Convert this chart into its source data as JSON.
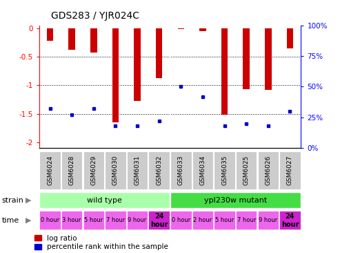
{
  "title": "GDS283 / YJR024C",
  "samples": [
    "GSM6024",
    "GSM6028",
    "GSM6029",
    "GSM6030",
    "GSM6031",
    "GSM6032",
    "GSM6033",
    "GSM6034",
    "GSM6035",
    "GSM6025",
    "GSM6026",
    "GSM6027"
  ],
  "log_ratios": [
    -0.22,
    -0.38,
    -0.43,
    -1.65,
    -1.27,
    -0.88,
    -0.02,
    -0.05,
    -1.52,
    -1.07,
    -1.08,
    -0.35
  ],
  "percentile_ranks": [
    32,
    27,
    32,
    18,
    18,
    22,
    50,
    42,
    18,
    20,
    18,
    30
  ],
  "ylim_left": [
    -2.1,
    0.05
  ],
  "ylim_right": [
    -2.1,
    0.05
  ],
  "left_yticks": [
    0,
    -0.5,
    -1.0,
    -1.5,
    -2.0
  ],
  "right_yticks_pct": [
    0,
    25,
    50,
    75,
    100
  ],
  "left_ytick_labels": [
    "0",
    "-0.5",
    "-1",
    "-1.5",
    "-2"
  ],
  "right_ytick_labels": [
    "0%",
    "25%",
    "50%",
    "75%",
    "100%"
  ],
  "bar_color": "#cc0000",
  "percentile_color": "#0000cc",
  "strain_labels": [
    "wild type",
    "ypl230w mutant"
  ],
  "strain_color_light": "#aaffaa",
  "strain_color_dark": "#44dd44",
  "time_labels": [
    "0 hour",
    "3 hour",
    "5 hour",
    "7 hour",
    "9 hour",
    "24\nhour",
    "0 hour",
    "2 hour",
    "5 hour",
    "7 hour",
    "9 hour",
    "24\nhour"
  ],
  "time_color": "#ee66ee",
  "time_color_24": "#cc22cc",
  "legend_red": "log ratio",
  "legend_blue": "percentile rank within the sample",
  "background_color": "#ffffff",
  "plot_bg_color": "#ffffff",
  "xticklabel_bg": "#cccccc"
}
